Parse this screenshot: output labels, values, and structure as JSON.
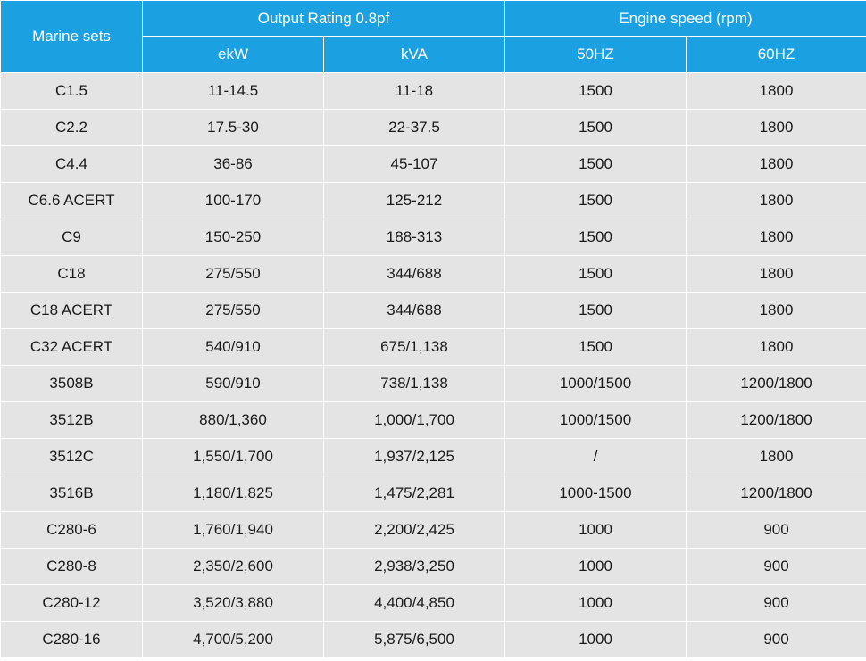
{
  "header": {
    "marine_sets": "Marine sets",
    "output_rating": "Output Rating 0.8pf",
    "engine_speed": "Engine speed (rpm)",
    "ekw": "ekW",
    "kva": "kVA",
    "hz50": "50HZ",
    "hz60": "60HZ"
  },
  "rows": [
    [
      "C1.5",
      "11-14.5",
      "11-18",
      "1500",
      "1800"
    ],
    [
      "C2.2",
      "17.5-30",
      "22-37.5",
      "1500",
      "1800"
    ],
    [
      "C4.4",
      "36-86",
      "45-107",
      "1500",
      "1800"
    ],
    [
      "C6.6 ACERT",
      "100-170",
      "125-212",
      "1500",
      "1800"
    ],
    [
      "C9",
      "150-250",
      "188-313",
      "1500",
      "1800"
    ],
    [
      "C18",
      "275/550",
      "344/688",
      "1500",
      "1800"
    ],
    [
      "C18 ACERT",
      "275/550",
      "344/688",
      "1500",
      "1800"
    ],
    [
      "C32 ACERT",
      "540/910",
      "675/1,138",
      "1500",
      "1800"
    ],
    [
      "3508B",
      "590/910",
      "738/1,138",
      "1000/1500",
      "1200/1800"
    ],
    [
      "3512B",
      "880/1,360",
      "1,000/1,700",
      "1000/1500",
      "1200/1800"
    ],
    [
      "3512C",
      "1,550/1,700",
      "1,937/2,125",
      "/",
      "1800"
    ],
    [
      "3516B",
      "1,180/1,825",
      "1,475/2,281",
      "1000-1500",
      "1200/1800"
    ],
    [
      "C280-6",
      "1,760/1,940",
      "2,200/2,425",
      "1000",
      "900"
    ],
    [
      "C280-8",
      "2,350/2,600",
      "2,938/3,250",
      "1000",
      "900"
    ],
    [
      "C280-12",
      "3,520/3,880",
      "4,400/4,850",
      "1000",
      "900"
    ],
    [
      "C280-16",
      "4,700/5,200",
      "5,875/6,500",
      "1000",
      "900"
    ]
  ],
  "colors": {
    "header_bg": "#1ba1e2",
    "row_bg": "#e4e4e4",
    "border": "#ffffff"
  }
}
